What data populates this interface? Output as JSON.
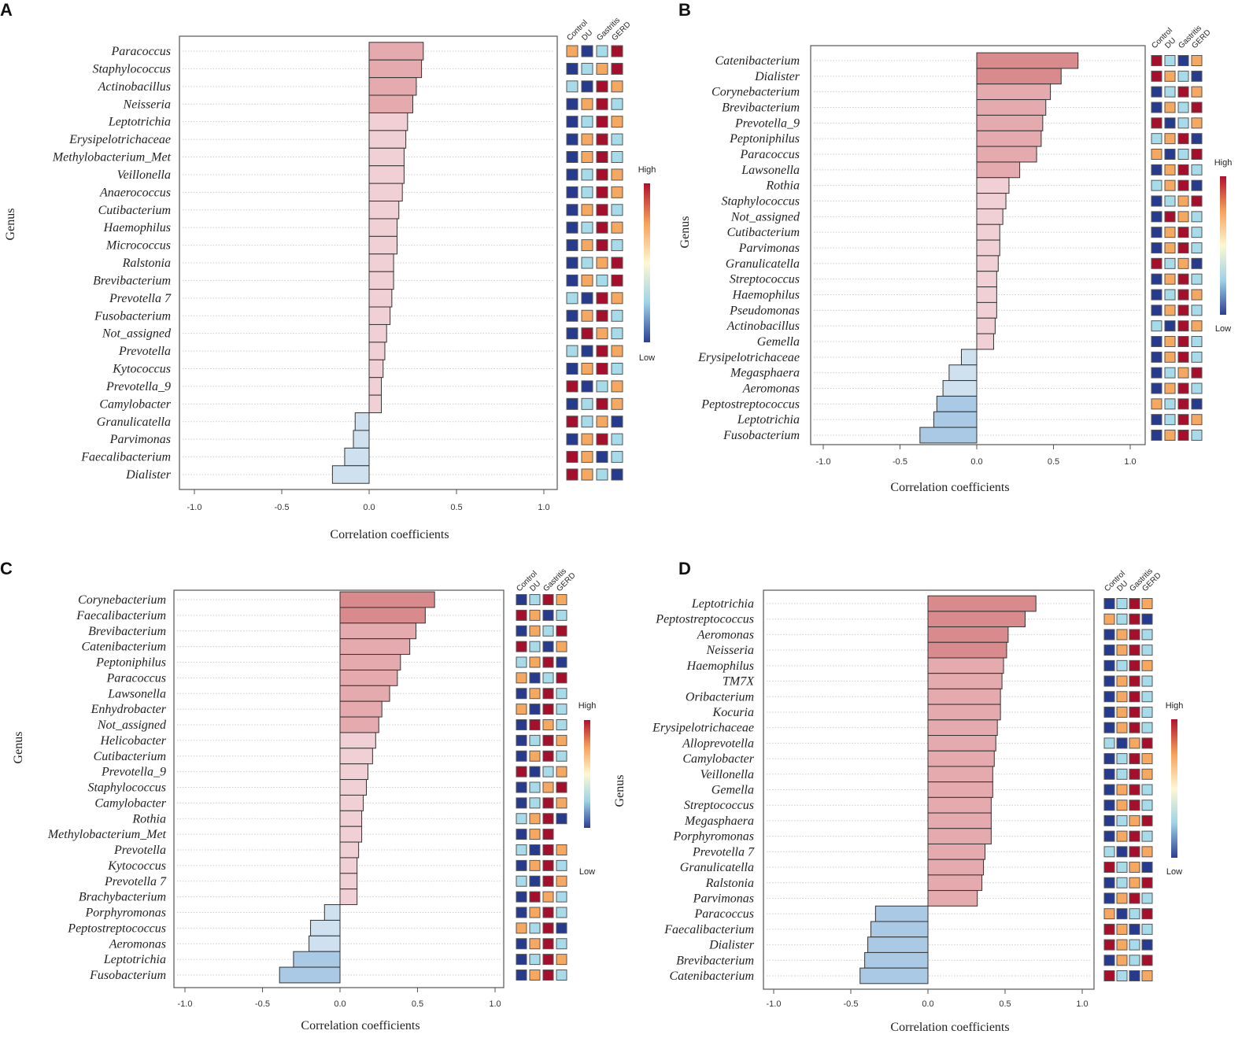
{
  "legend_colors": {
    "heat_levels": {
      "1": "#263a8e",
      "2": "#a8dbe9",
      "3": "#f7a860",
      "4": "#a50f2b"
    },
    "gradient": [
      "#2c3e94",
      "#9fd3e6",
      "#fdf8d2",
      "#f7a15a",
      "#b3102c"
    ],
    "bar_positive": [
      "#f0d0d4",
      "#e4aaad",
      "#d98a8c"
    ],
    "bar_negative": [
      "#cfe0ef",
      "#a9c9e4"
    ]
  },
  "chart_data": [
    {
      "panel": "A",
      "type": "bar",
      "orientation": "horizontal",
      "xlabel": "Correlation coefficients",
      "ylabel": "Genus",
      "xlim": [
        -1,
        1
      ],
      "xticks": [
        "-1.0",
        "-0.5",
        "0.0",
        "0.5",
        "1.0"
      ],
      "grid": "dotted horizontal",
      "categories": [
        "Paracoccus",
        "Staphylococcus",
        "Actinobacillus",
        "Neisseria",
        "Leptotrichia",
        "Erysipelotrichaceae",
        "Methylobacterium_Met",
        "Veillonella",
        "Anaerococcus",
        "Cutibacterium",
        "Haemophilus",
        "Micrococcus",
        "Ralstonia",
        "Brevibacterium",
        "Prevotella 7",
        "Fusobacterium",
        "Not_assigned",
        "Prevotella",
        "Kytococcus",
        "Prevotella_9",
        "Camylobacter",
        "Granulicatella",
        "Parvimonas",
        "Faecalibacterium",
        "Dialister"
      ],
      "values": [
        0.31,
        0.3,
        0.27,
        0.25,
        0.22,
        0.21,
        0.2,
        0.2,
        0.19,
        0.17,
        0.16,
        0.16,
        0.14,
        0.14,
        0.13,
        0.12,
        0.1,
        0.09,
        0.08,
        0.07,
        0.07,
        -0.08,
        -0.09,
        -0.14,
        -0.21
      ],
      "heatmap": {
        "columns": [
          "Control",
          "DU",
          "Gastritis",
          "GERD"
        ],
        "levels": [
          [
            3,
            1,
            2,
            4
          ],
          [
            1,
            2,
            3,
            4
          ],
          [
            2,
            1,
            4,
            3
          ],
          [
            1,
            3,
            4,
            2
          ],
          [
            1,
            2,
            4,
            3
          ],
          [
            1,
            3,
            4,
            2
          ],
          [
            1,
            3,
            4,
            2
          ],
          [
            1,
            2,
            4,
            3
          ],
          [
            1,
            2,
            4,
            3
          ],
          [
            1,
            3,
            4,
            2
          ],
          [
            1,
            2,
            4,
            3
          ],
          [
            1,
            3,
            4,
            2
          ],
          [
            1,
            2,
            3,
            4
          ],
          [
            1,
            3,
            2,
            4
          ],
          [
            2,
            1,
            4,
            3
          ],
          [
            1,
            3,
            4,
            2
          ],
          [
            1,
            4,
            3,
            2
          ],
          [
            2,
            1,
            4,
            3
          ],
          [
            1,
            3,
            4,
            2
          ],
          [
            4,
            1,
            2,
            3
          ],
          [
            1,
            2,
            4,
            3
          ],
          [
            4,
            2,
            3,
            1
          ],
          [
            1,
            3,
            4,
            2
          ],
          [
            4,
            3,
            1,
            2
          ],
          [
            4,
            3,
            2,
            1
          ]
        ]
      },
      "legend": {
        "high": "High",
        "low": "Low"
      }
    },
    {
      "panel": "B",
      "type": "bar",
      "orientation": "horizontal",
      "xlabel": "Correlation coefficients",
      "ylabel": "Genus",
      "xlim": [
        -1,
        1
      ],
      "xticks": [
        "-1.0",
        "-0.5",
        "0.0",
        "0.5",
        "1.0"
      ],
      "grid": "dotted horizontal",
      "categories": [
        "Catenibacterium",
        "Dialister",
        "Corynebacterium",
        "Brevibacterium",
        "Prevotella_9",
        "Peptoniphilus",
        "Paracoccus",
        "Lawsonella",
        "Rothia",
        "Staphylococcus",
        "Not_assigned",
        "Cutibacterium",
        "Parvimonas",
        "Granulicatella",
        "Streptococcus",
        "Haemophilus",
        "Pseudomonas",
        "Actinobacillus",
        "Gemella",
        "Erysipelotrichaceae",
        "Megasphaera",
        "Aeromonas",
        "Peptostreptococcus",
        "Leptotrichia",
        "Fusobacterium"
      ],
      "values": [
        0.66,
        0.55,
        0.48,
        0.45,
        0.43,
        0.42,
        0.39,
        0.28,
        0.21,
        0.19,
        0.17,
        0.15,
        0.15,
        0.14,
        0.13,
        0.13,
        0.13,
        0.12,
        0.11,
        -0.1,
        -0.18,
        -0.22,
        -0.26,
        -0.28,
        -0.37
      ],
      "heatmap": {
        "columns": [
          "Control",
          "DU",
          "Gastritis",
          "GERD"
        ],
        "levels": [
          [
            4,
            2,
            1,
            3
          ],
          [
            4,
            3,
            2,
            1
          ],
          [
            1,
            2,
            4,
            3
          ],
          [
            1,
            3,
            2,
            4
          ],
          [
            4,
            1,
            2,
            3
          ],
          [
            2,
            3,
            4,
            1
          ],
          [
            3,
            1,
            2,
            4
          ],
          [
            1,
            3,
            4,
            2
          ],
          [
            2,
            3,
            4,
            1
          ],
          [
            1,
            2,
            3,
            4
          ],
          [
            1,
            4,
            3,
            2
          ],
          [
            1,
            3,
            4,
            2
          ],
          [
            1,
            3,
            4,
            2
          ],
          [
            4,
            2,
            3,
            1
          ],
          [
            1,
            3,
            4,
            2
          ],
          [
            1,
            2,
            4,
            3
          ],
          [
            1,
            3,
            4,
            2
          ],
          [
            2,
            1,
            4,
            3
          ],
          [
            1,
            3,
            4,
            2
          ],
          [
            1,
            3,
            4,
            2
          ],
          [
            1,
            2,
            3,
            4
          ],
          [
            1,
            3,
            4,
            2
          ],
          [
            3,
            2,
            4,
            1
          ],
          [
            1,
            2,
            4,
            3
          ],
          [
            1,
            3,
            4,
            2
          ]
        ]
      },
      "legend": {
        "high": "High",
        "low": "Low"
      }
    },
    {
      "panel": "C",
      "type": "bar",
      "orientation": "horizontal",
      "xlabel": "Correlation coefficients",
      "ylabel": "Genus",
      "xlim": [
        -1,
        1
      ],
      "xticks": [
        "-1.0",
        "-0.5",
        "0.0",
        "0.5",
        "1.0"
      ],
      "grid": "dotted horizontal",
      "categories": [
        "Corynebacterium",
        "Faecalibacterium",
        "Brevibacterium",
        "Catenibacterium",
        "Peptoniphilus",
        "Paracoccus",
        "Lawsonella",
        "Enhydrobacter",
        "Not_assigned",
        "Helicobacter",
        "Cutibacterium",
        "Prevotella_9",
        "Staphylococcus",
        "Camylobacter",
        "Rothia",
        "Methylobacterium_Met",
        "Prevotella",
        "Kytococcus",
        "Prevotella 7",
        "Brachybacterium",
        "Porphyromonas",
        "Peptostreptococcus",
        "Aeromonas",
        "Leptotrichia",
        "Fusobacterium"
      ],
      "values": [
        0.61,
        0.55,
        0.49,
        0.45,
        0.39,
        0.37,
        0.32,
        0.27,
        0.25,
        0.23,
        0.21,
        0.18,
        0.17,
        0.15,
        0.14,
        0.14,
        0.12,
        0.11,
        0.11,
        0.11,
        -0.1,
        -0.19,
        -0.2,
        -0.3,
        -0.39
      ],
      "heatmap": {
        "columns": [
          "Control",
          "DU",
          "Gastritis",
          "GERD"
        ],
        "levels": [
          [
            1,
            2,
            4,
            3
          ],
          [
            4,
            3,
            1,
            2
          ],
          [
            1,
            3,
            2,
            4
          ],
          [
            4,
            2,
            1,
            3
          ],
          [
            2,
            3,
            4,
            1
          ],
          [
            3,
            1,
            2,
            4
          ],
          [
            1,
            3,
            4,
            2
          ],
          [
            3,
            1,
            4,
            2
          ],
          [
            1,
            4,
            3,
            2
          ],
          [
            1,
            2,
            4,
            3
          ],
          [
            1,
            3,
            4,
            2
          ],
          [
            4,
            1,
            2,
            3
          ],
          [
            1,
            2,
            3,
            4
          ],
          [
            1,
            2,
            4,
            3
          ],
          [
            2,
            3,
            4,
            1
          ],
          [
            1,
            3,
            4,
            null
          ],
          [
            2,
            1,
            4,
            3
          ],
          [
            1,
            3,
            4,
            2
          ],
          [
            2,
            1,
            4,
            3
          ],
          [
            1,
            4,
            3,
            2
          ],
          [
            1,
            3,
            4,
            2
          ],
          [
            3,
            2,
            4,
            1
          ],
          [
            1,
            3,
            4,
            2
          ],
          [
            1,
            2,
            4,
            3
          ],
          [
            1,
            3,
            4,
            2
          ]
        ]
      },
      "legend": {
        "high": "High",
        "low": "Low"
      }
    },
    {
      "panel": "D",
      "type": "bar",
      "orientation": "horizontal",
      "xlabel": "Correlation coefficients",
      "ylabel": "Genus",
      "xlim": [
        -1,
        1
      ],
      "xticks": [
        "-1.0",
        "-0.5",
        "0.0",
        "0.5",
        "1.0"
      ],
      "grid": "dotted horizontal",
      "categories": [
        "Leptotrichia",
        "Peptostreptococcus",
        "Aeromonas",
        "Neisseria",
        "Haemophilus",
        "TM7X",
        "Oribacterium",
        "Kocuria",
        "Erysipelotrichaceae",
        "Alloprevotella",
        "Camylobacter",
        "Veillonella",
        "Gemella",
        "Streptococcus",
        "Megasphaera",
        "Porphyromonas",
        "Prevotella 7",
        "Granulicatella",
        "Ralstonia",
        "Parvimonas",
        "Paracoccus",
        "Faecalibacterium",
        "Dialister",
        "Brevibacterium",
        "Catenibacterium"
      ],
      "values": [
        0.7,
        0.63,
        0.52,
        0.51,
        0.49,
        0.48,
        0.47,
        0.47,
        0.45,
        0.44,
        0.43,
        0.42,
        0.42,
        0.41,
        0.41,
        0.41,
        0.37,
        0.36,
        0.35,
        0.32,
        -0.34,
        -0.37,
        -0.39,
        -0.41,
        -0.44
      ],
      "heatmap": {
        "columns": [
          "Control",
          "DU",
          "Gastritis",
          "GERD"
        ],
        "levels": [
          [
            1,
            2,
            4,
            3
          ],
          [
            3,
            2,
            4,
            1
          ],
          [
            1,
            3,
            4,
            2
          ],
          [
            1,
            3,
            4,
            2
          ],
          [
            1,
            2,
            4,
            3
          ],
          [
            1,
            3,
            4,
            2
          ],
          [
            1,
            3,
            4,
            2
          ],
          [
            1,
            3,
            4,
            2
          ],
          [
            1,
            3,
            4,
            2
          ],
          [
            2,
            1,
            3,
            4
          ],
          [
            1,
            2,
            4,
            3
          ],
          [
            1,
            2,
            4,
            3
          ],
          [
            1,
            3,
            4,
            2
          ],
          [
            1,
            3,
            4,
            2
          ],
          [
            1,
            2,
            3,
            4
          ],
          [
            1,
            3,
            4,
            2
          ],
          [
            2,
            1,
            4,
            3
          ],
          [
            4,
            2,
            3,
            1
          ],
          [
            1,
            2,
            3,
            4
          ],
          [
            1,
            3,
            4,
            2
          ],
          [
            3,
            1,
            2,
            4
          ],
          [
            4,
            3,
            1,
            2
          ],
          [
            4,
            3,
            2,
            1
          ],
          [
            1,
            3,
            2,
            4
          ],
          [
            4,
            2,
            1,
            3
          ]
        ]
      },
      "legend": {
        "high": "High",
        "low": "Low"
      }
    }
  ]
}
